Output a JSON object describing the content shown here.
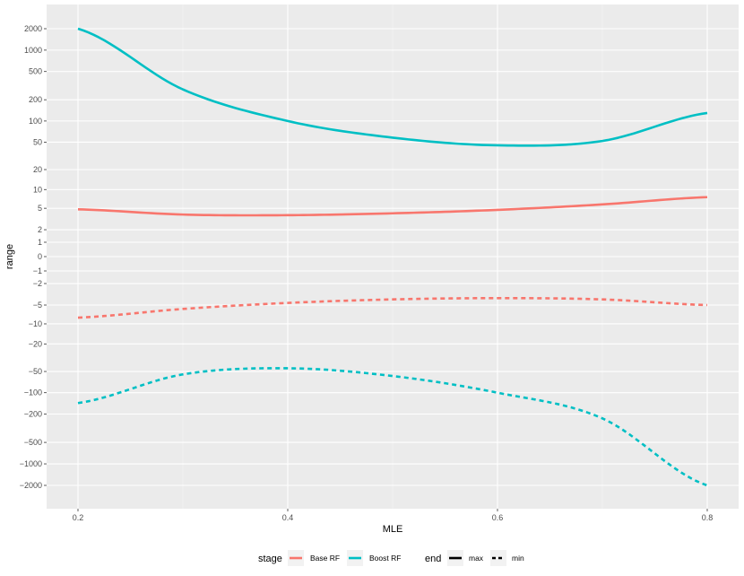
{
  "chart_data": {
    "type": "line",
    "xlabel": "MLE",
    "ylabel": "range",
    "xlim": [
      0.2,
      0.8
    ],
    "x_ticks": [
      0.2,
      0.4,
      0.6,
      0.8
    ],
    "x_tick_labels": [
      "0.2",
      "0.4",
      "0.6",
      "0.8"
    ],
    "y_scale": "signed-log (pseudo-log)",
    "ylim": [
      -3000,
      3000
    ],
    "y_ticks": [
      2000,
      1000,
      500,
      200,
      100,
      50,
      20,
      10,
      5,
      2,
      1,
      0,
      -1,
      -2,
      -5,
      -10,
      -20,
      -50,
      -100,
      -200,
      -500,
      -1000,
      -2000
    ],
    "y_tick_labels": [
      "2000",
      "1000",
      "500",
      "200",
      "100",
      "50",
      "20",
      "10",
      "5",
      "2",
      "1",
      "0",
      "−1",
      "−2",
      "−5",
      "−10",
      "−20",
      "−50",
      "−100",
      "−200",
      "−500",
      "−1000",
      "−2000"
    ],
    "grid": true,
    "legend_position": "bottom",
    "x": [
      0.2,
      0.3,
      0.4,
      0.5,
      0.6,
      0.7,
      0.8
    ],
    "series": [
      {
        "stage": "Base RF",
        "end": "max",
        "color": "#F8766D",
        "linetype": "solid",
        "values": [
          4.8,
          3.9,
          3.8,
          4.1,
          4.7,
          5.8,
          7.6
        ]
      },
      {
        "stage": "Boost RF",
        "end": "max",
        "color": "#00BFC4",
        "linetype": "solid",
        "values": [
          2000,
          280,
          100,
          58,
          45,
          52,
          130
        ]
      },
      {
        "stage": "Base RF",
        "end": "min",
        "color": "#F8766D",
        "linetype": "dashed",
        "values": [
          -8,
          -5.8,
          -4.6,
          -4,
          -3.8,
          -4,
          -5
        ]
      },
      {
        "stage": "Boost RF",
        "end": "min",
        "color": "#00BFC4",
        "linetype": "dashed",
        "values": [
          -140,
          -55,
          -45,
          -58,
          -100,
          -230,
          -2000
        ]
      }
    ]
  },
  "legend": {
    "stage": {
      "title": "stage",
      "items": [
        {
          "label": "Base RF",
          "color": "#F8766D"
        },
        {
          "label": "Boost RF",
          "color": "#00BFC4"
        }
      ]
    },
    "end": {
      "title": "end",
      "items": [
        {
          "label": "max",
          "linetype": "solid"
        },
        {
          "label": "min",
          "linetype": "dashed"
        }
      ]
    }
  }
}
